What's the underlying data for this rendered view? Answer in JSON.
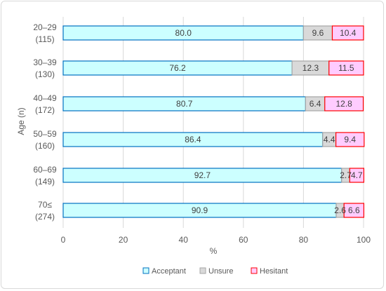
{
  "chart_data": {
    "type": "bar",
    "orientation": "horizontal",
    "stacked": true,
    "categories": [
      {
        "line1": "20–29",
        "line2": "(115)"
      },
      {
        "line1": "30–39",
        "line2": "(130)"
      },
      {
        "line1": "40–49",
        "line2": "(172)"
      },
      {
        "line1": "50–59",
        "line2": "(160)"
      },
      {
        "line1": "60–69",
        "line2": "(149)"
      },
      {
        "line1": "70≤",
        "line2": "(274)"
      }
    ],
    "series": [
      {
        "name": "Acceptant",
        "values": [
          80.0,
          76.2,
          80.7,
          86.4,
          92.7,
          90.9
        ],
        "labels": [
          "80.0",
          "76.2",
          "80.7",
          "86.4",
          "92.7",
          "90.9"
        ],
        "fill": "#ccffff",
        "stroke": "#0070c0"
      },
      {
        "name": "Unsure",
        "values": [
          9.6,
          12.3,
          6.4,
          4.4,
          2.7,
          2.6
        ],
        "labels": [
          "9.6",
          "12.3",
          "6.4",
          "4.4",
          "2.7",
          "2.6"
        ],
        "fill": "#d9d9d9",
        "stroke": "#a6a6a6"
      },
      {
        "name": "Hesitant",
        "values": [
          10.4,
          11.5,
          12.8,
          9.4,
          4.7,
          6.6
        ],
        "labels": [
          "10.4",
          "11.5",
          "12.8",
          "9.4",
          "4.7",
          "6.6"
        ],
        "fill": "#ffccff",
        "stroke": "#ff0000"
      }
    ],
    "xlabel": "%",
    "ylabel": "Age (n)",
    "xlim": [
      0,
      100
    ],
    "xticks": [
      0,
      20,
      40,
      60,
      80,
      100
    ],
    "grid": "vertical",
    "legend": "bottom"
  }
}
